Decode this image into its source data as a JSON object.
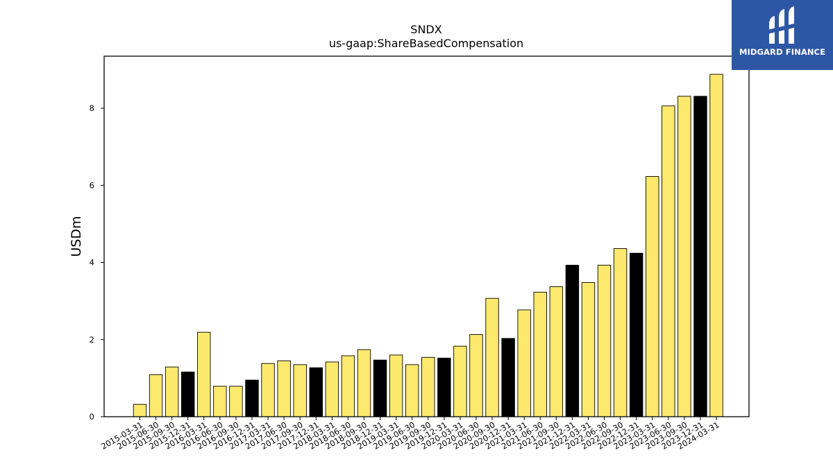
{
  "chart_data": {
    "type": "bar",
    "title": "SNDX",
    "subtitle": "us-gaap:ShareBasedCompensation",
    "xlabel": "",
    "ylabel": "USDm",
    "ylim": [
      0,
      9.35
    ],
    "yticks": [
      0,
      2,
      4,
      6,
      8
    ],
    "grid": false,
    "colors": {
      "default": "#fde96e",
      "highlight": "#000000",
      "edge": "#000000"
    },
    "categories": [
      "2015-03-31",
      "2015-06-30",
      "2015-09-30",
      "2015-12-31",
      "2016-03-31",
      "2016-06-30",
      "2016-09-30",
      "2016-12-31",
      "2017-03-31",
      "2017-06-30",
      "2017-09-30",
      "2017-12-31",
      "2018-03-31",
      "2018-06-30",
      "2018-09-30",
      "2018-12-31",
      "2019-03-31",
      "2019-06-30",
      "2019-09-30",
      "2019-12-31",
      "2020-03-31",
      "2020-06-30",
      "2020-09-30",
      "2020-12-31",
      "2021-03-31",
      "2021-06-30",
      "2021-09-30",
      "2021-12-31",
      "2022-03-31",
      "2022-06-30",
      "2022-09-30",
      "2022-12-31",
      "2023-03-31",
      "2023-06-30",
      "2023-09-30",
      "2023-12-31",
      "2024-03-31"
    ],
    "values": [
      0.32,
      1.09,
      1.29,
      1.16,
      2.19,
      0.79,
      0.79,
      0.95,
      1.38,
      1.45,
      1.35,
      1.27,
      1.42,
      1.58,
      1.74,
      1.47,
      1.6,
      1.35,
      1.54,
      1.52,
      1.83,
      2.13,
      3.07,
      2.03,
      2.77,
      3.23,
      3.37,
      3.93,
      3.48,
      3.93,
      4.36,
      4.24,
      6.23,
      8.06,
      8.31,
      8.31,
      8.88
    ],
    "highlighted": [
      false,
      false,
      false,
      true,
      false,
      false,
      false,
      true,
      false,
      false,
      false,
      true,
      false,
      false,
      false,
      true,
      false,
      false,
      false,
      true,
      false,
      false,
      false,
      true,
      false,
      false,
      false,
      true,
      false,
      false,
      false,
      true,
      false,
      false,
      false,
      true,
      false
    ]
  },
  "logo": {
    "text": "MIDGARD FINANCE"
  }
}
